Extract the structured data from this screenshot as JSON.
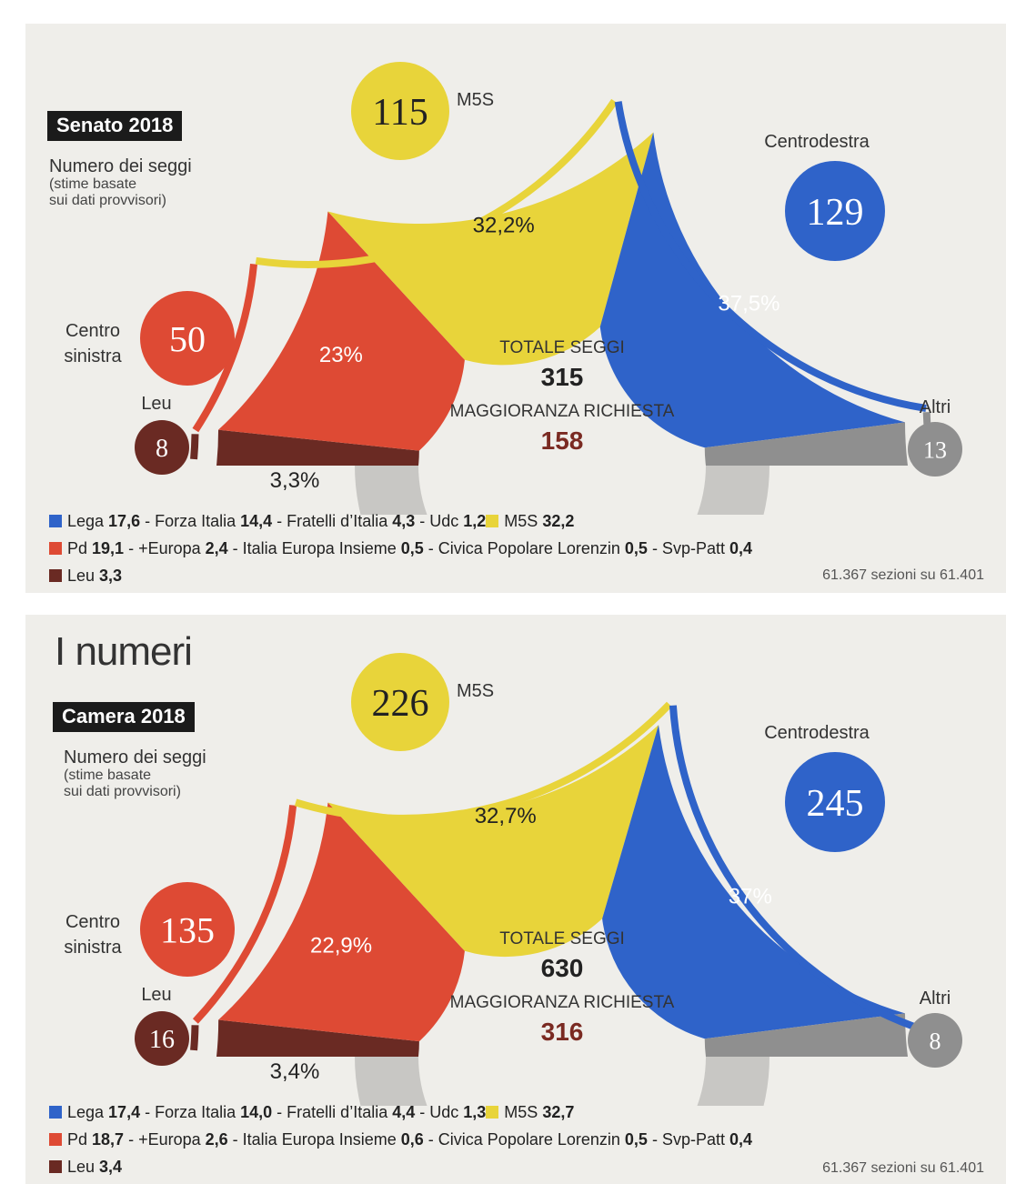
{
  "page_heading": "I numeri",
  "colors": {
    "m5s": "#e8d43a",
    "cdx": "#2f63c9",
    "csx": "#de4a34",
    "leu": "#6a2a23",
    "altri": "#8f8f8f"
  },
  "chart_data": [
    {
      "type": "pie",
      "title": "Senato 2018",
      "subtitle": [
        "Numero dei seggi",
        "(stime basate",
        "sui dati provvisori)"
      ],
      "series": [
        {
          "name": "Leu",
          "seats": 8,
          "vote_pct": 3.3,
          "pct_label": "3,3%"
        },
        {
          "name": "Centro sinistra",
          "seats": 50,
          "vote_pct": 23,
          "pct_label": "23%"
        },
        {
          "name": "M5S",
          "seats": 115,
          "vote_pct": 32.2,
          "pct_label": "32,2%"
        },
        {
          "name": "Centrodestra",
          "seats": 129,
          "vote_pct": 37.5,
          "pct_label": "37,5%"
        },
        {
          "name": "Altri",
          "seats": 13
        }
      ],
      "total_label": "TOTALE SEGGI",
      "total": "315",
      "majority_label": "MAGGIORANZA RICHIESTA",
      "majority": "158",
      "legend_rows": [
        [
          {
            "c": "cdx",
            "t": "Lega ",
            "b": "17,6"
          },
          {
            "t": " - Forza Italia ",
            "b": "14,4"
          },
          {
            "t": " - Fratelli d’Italia ",
            "b": "4,3"
          },
          {
            "t": " - Udc ",
            "b": "1,2"
          },
          {
            "c": "m5s",
            "t": "M5S ",
            "b": "32,2"
          }
        ],
        [
          {
            "c": "csx",
            "t": "Pd ",
            "b": "19,1"
          },
          {
            "t": " - +Europa ",
            "b": "2,4"
          },
          {
            "t": " - Italia Europa Insieme ",
            "b": "0,5"
          },
          {
            "t": " - Civica Popolare Lorenzin ",
            "b": "0,5"
          },
          {
            "t": " - Svp-Patt ",
            "b": "0,4"
          }
        ],
        [
          {
            "c": "leu",
            "t": "Leu ",
            "b": "3,3"
          }
        ]
      ],
      "note": "61.367 sezioni su 61.401"
    },
    {
      "type": "pie",
      "title": "Camera 2018",
      "subtitle": [
        "Numero dei seggi",
        "(stime basate",
        "sui dati provvisori)"
      ],
      "series": [
        {
          "name": "Leu",
          "seats": 16,
          "vote_pct": 3.4,
          "pct_label": "3,4%"
        },
        {
          "name": "Centro sinistra",
          "seats": 135,
          "vote_pct": 22.9,
          "pct_label": "22,9%"
        },
        {
          "name": "M5S",
          "seats": 226,
          "vote_pct": 32.7,
          "pct_label": "32,7%"
        },
        {
          "name": "Centrodestra",
          "seats": 245,
          "vote_pct": 37,
          "pct_label": "37%"
        },
        {
          "name": "Altri",
          "seats": 8
        }
      ],
      "total_label": "TOTALE SEGGI",
      "total": "630",
      "majority_label": "MAGGIORANZA RICHIESTA",
      "majority": "316",
      "legend_rows": [
        [
          {
            "c": "cdx",
            "t": "Lega ",
            "b": "17,4"
          },
          {
            "t": " - Forza Italia ",
            "b": "14,0"
          },
          {
            "t": " - Fratelli d’Italia ",
            "b": "4,4"
          },
          {
            "t": " - Udc ",
            "b": "1,3"
          },
          {
            "c": "m5s",
            "t": "M5S ",
            "b": "32,7"
          }
        ],
        [
          {
            "c": "csx",
            "t": "Pd ",
            "b": "18,7"
          },
          {
            "t": " - +Europa ",
            "b": "2,6"
          },
          {
            "t": " - Italia Europa Insieme ",
            "b": "0,6"
          },
          {
            "t": " - Civica Popolare Lorenzin ",
            "b": "0,5"
          },
          {
            "t": " - Svp-Patt ",
            "b": "0,4"
          }
        ],
        [
          {
            "c": "leu",
            "t": "Leu ",
            "b": "3,4"
          }
        ]
      ],
      "note": "61.367 sezioni su 61.401"
    }
  ]
}
